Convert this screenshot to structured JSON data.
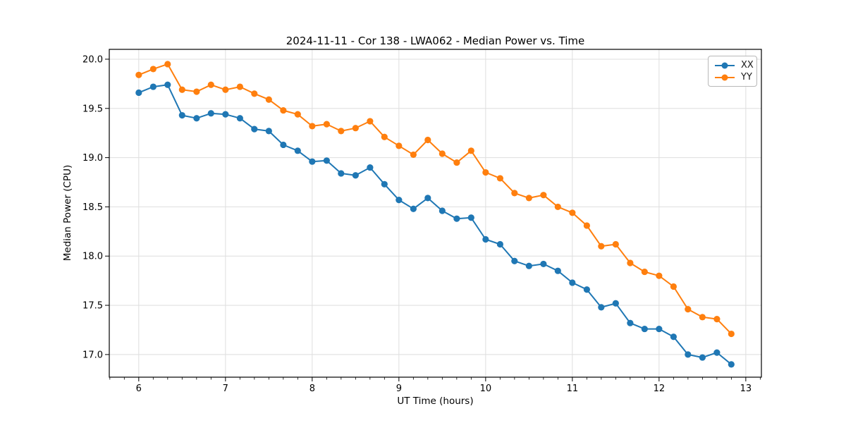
{
  "chart_data": {
    "type": "line",
    "title": "2024-11-11 - Cor 138 - LWA062 - Median Power vs. Time",
    "xlabel": "UT Time (hours)",
    "ylabel": "Median Power (CPU)",
    "legend_position": "upper right",
    "grid": true,
    "marker": "circle",
    "xlim": [
      5.66,
      13.18
    ],
    "ylim": [
      16.77,
      20.1
    ],
    "x_ticks": [
      6,
      7,
      8,
      9,
      10,
      11,
      12,
      13
    ],
    "x_minor_subdivisions": 6,
    "y_ticks": [
      17.0,
      17.5,
      18.0,
      18.5,
      19.0,
      19.5,
      20.0
    ],
    "x": [
      6.0,
      6.167,
      6.333,
      6.5,
      6.667,
      6.833,
      7.0,
      7.167,
      7.333,
      7.5,
      7.667,
      7.833,
      8.0,
      8.167,
      8.333,
      8.5,
      8.667,
      8.833,
      9.0,
      9.167,
      9.333,
      9.5,
      9.667,
      9.833,
      10.0,
      10.167,
      10.333,
      10.5,
      10.667,
      10.833,
      11.0,
      11.167,
      11.333,
      11.5,
      11.667,
      11.833,
      12.0,
      12.167,
      12.333,
      12.5,
      12.667,
      12.833
    ],
    "series": [
      {
        "name": "XX",
        "color": "#1f77b4",
        "values": [
          19.66,
          19.72,
          19.74,
          19.43,
          19.4,
          19.45,
          19.44,
          19.4,
          19.29,
          19.27,
          19.13,
          19.07,
          18.96,
          18.97,
          18.84,
          18.82,
          18.9,
          18.73,
          18.57,
          18.48,
          18.59,
          18.46,
          18.38,
          18.39,
          18.17,
          18.12,
          17.95,
          17.9,
          17.92,
          17.85,
          17.73,
          17.66,
          17.48,
          17.52,
          17.32,
          17.26,
          17.26,
          17.18,
          17.0,
          16.97,
          17.02,
          16.9
        ]
      },
      {
        "name": "YY",
        "color": "#ff7f0e",
        "values": [
          19.84,
          19.9,
          19.95,
          19.69,
          19.67,
          19.74,
          19.69,
          19.72,
          19.65,
          19.59,
          19.48,
          19.44,
          19.32,
          19.34,
          19.27,
          19.3,
          19.37,
          19.21,
          19.12,
          19.03,
          19.18,
          19.04,
          18.95,
          19.07,
          18.85,
          18.79,
          18.64,
          18.59,
          18.62,
          18.5,
          18.44,
          18.31,
          18.1,
          18.12,
          17.93,
          17.84,
          17.8,
          17.69,
          17.46,
          17.38,
          17.36,
          17.21
        ]
      }
    ]
  }
}
